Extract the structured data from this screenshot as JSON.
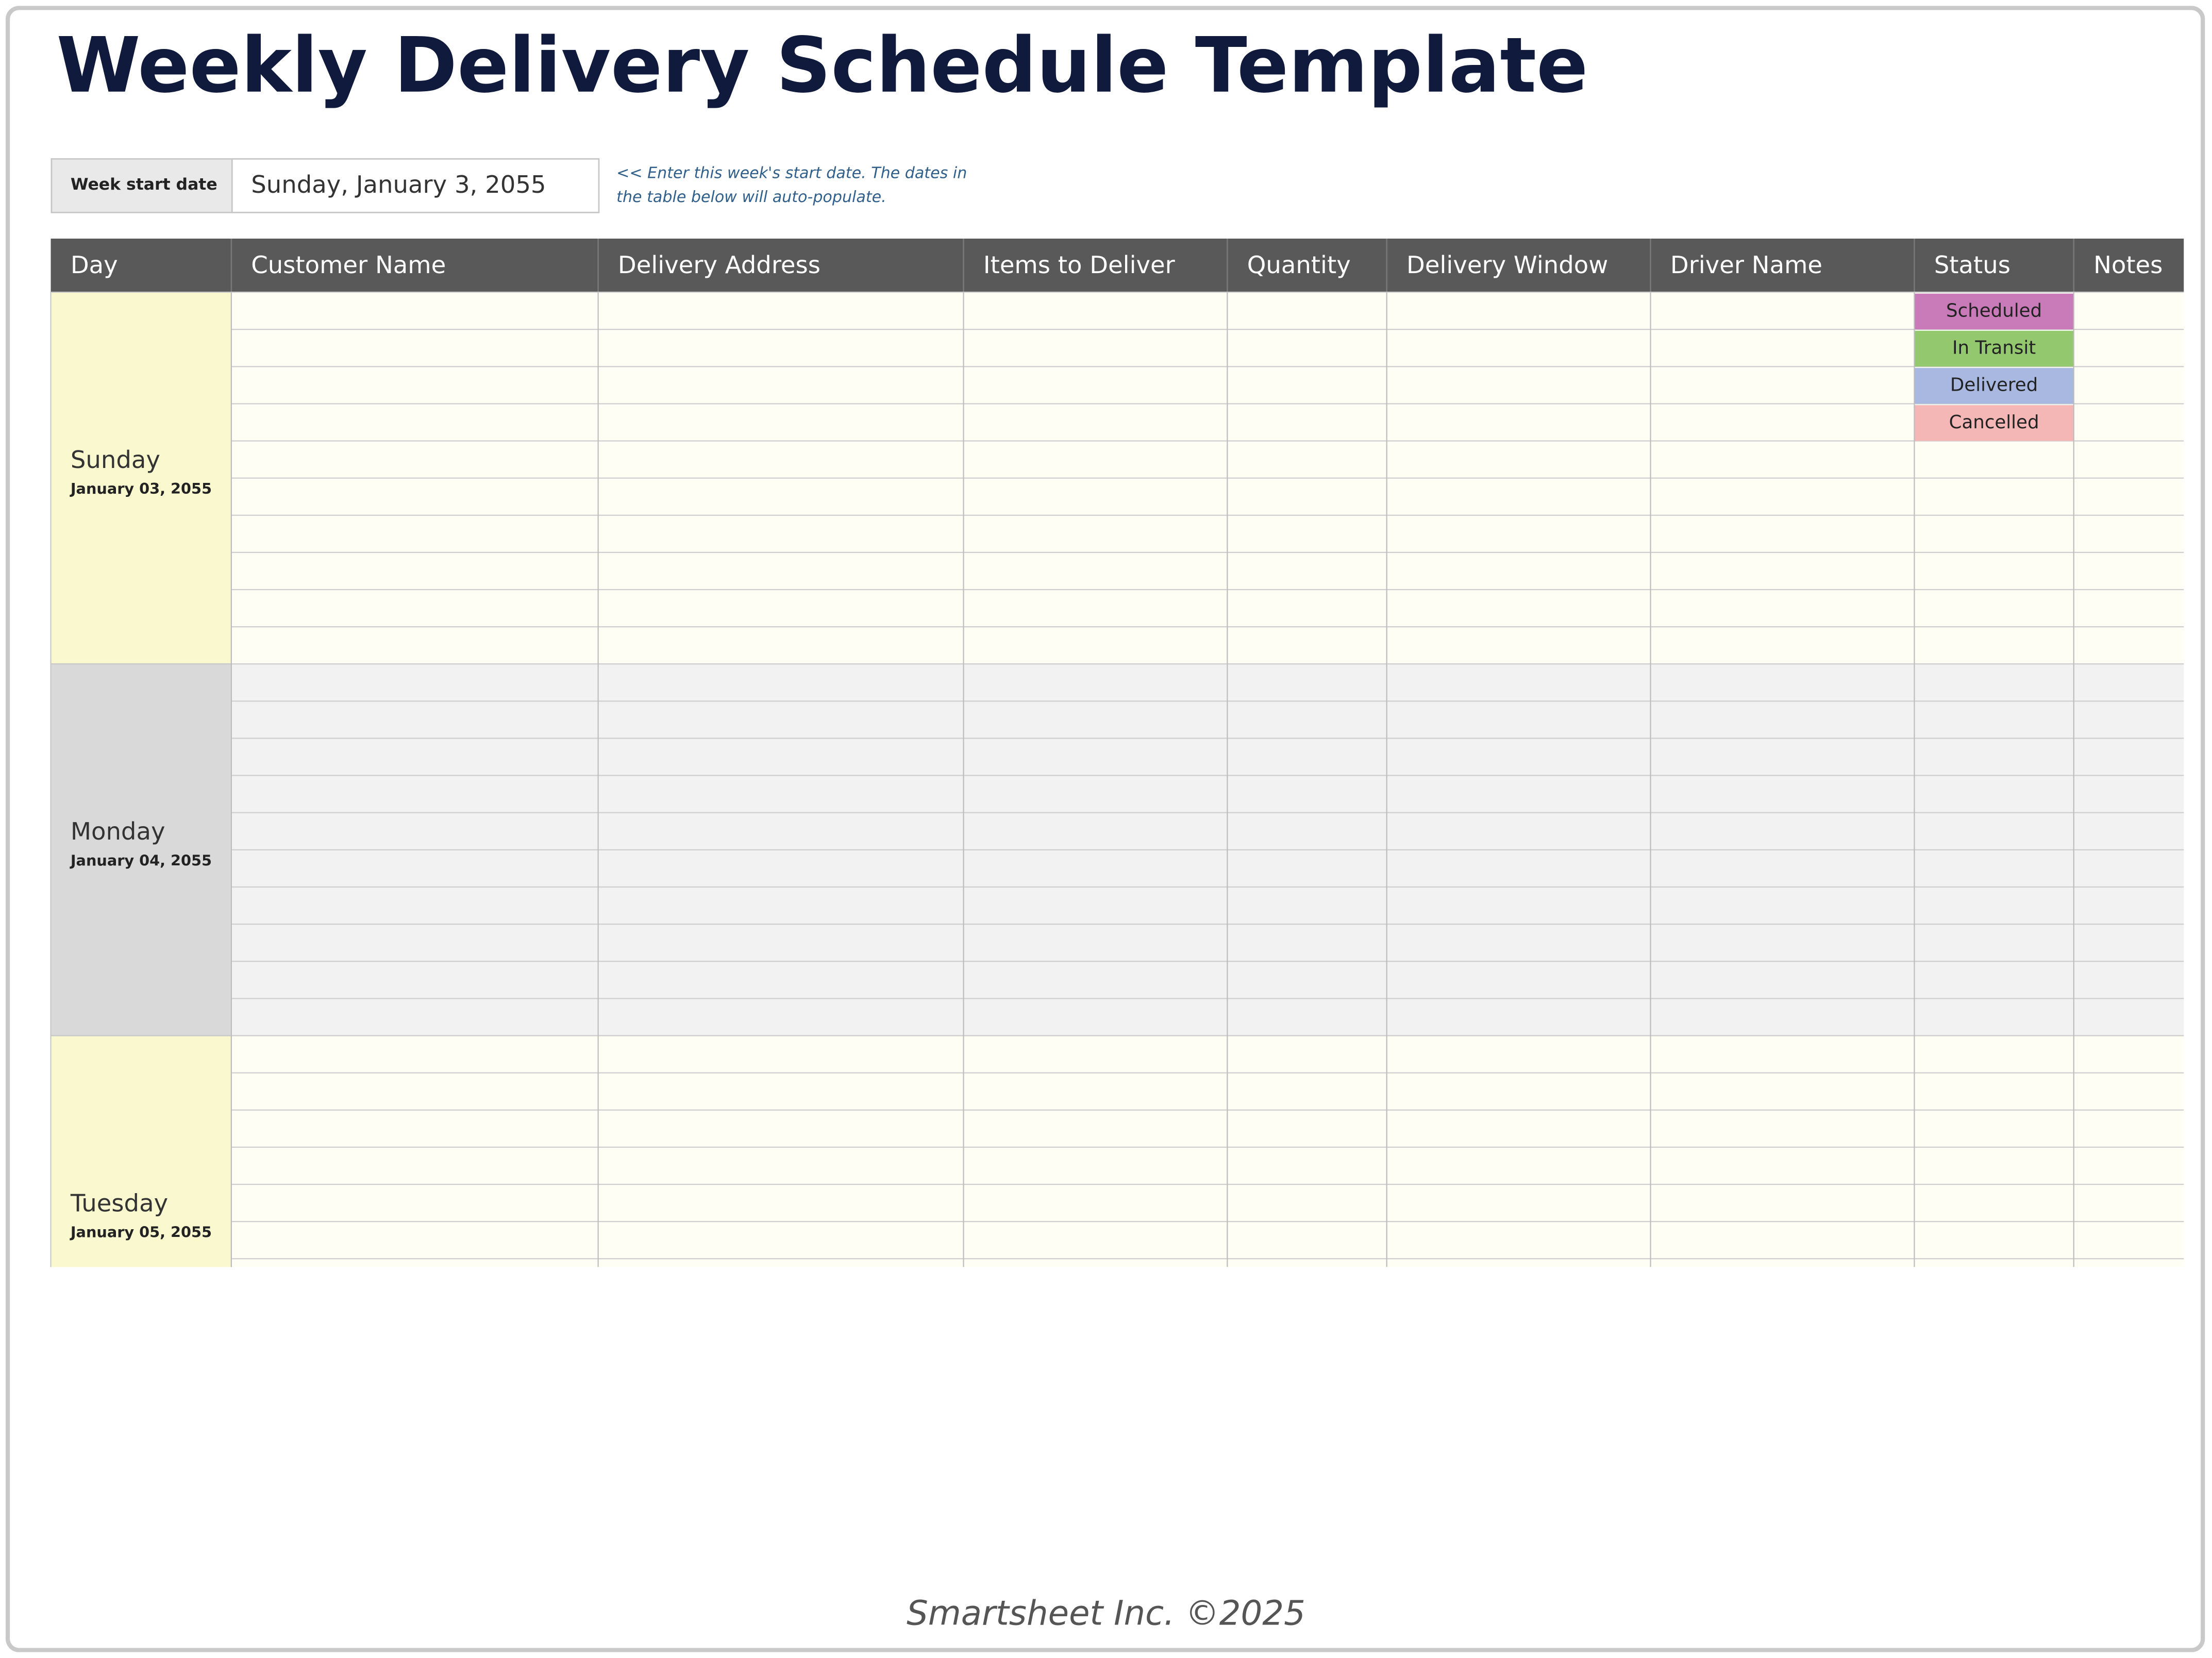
{
  "header": {
    "title": "Weekly Delivery Schedule Template"
  },
  "week_start": {
    "label": "Week start date",
    "value": "Sunday, January 3, 2055",
    "note": [
      "<< Enter this week's start date. The dates in",
      "the table below will auto-populate."
    ]
  },
  "table": {
    "columns": [
      "Day",
      "Customer Name",
      "Delivery Address",
      "Items to Deliver",
      "Quantity",
      "Delivery Window",
      "Driver Name",
      "Status",
      "Notes"
    ],
    "days": [
      {
        "name": "Sunday",
        "date": "January 03, 2055"
      },
      {
        "name": "Monday",
        "date": "January 04, 2055"
      },
      {
        "name": "Tuesday",
        "date": "January 05, 2055"
      }
    ],
    "statuses": [
      {
        "label": "Scheduled",
        "color": "#c87bb8"
      },
      {
        "label": "In Transit",
        "color": "#93c86f"
      },
      {
        "label": "Delivered",
        "color": "#a8b8e0"
      },
      {
        "label": "Cancelled",
        "color": "#f4b7b5"
      }
    ]
  },
  "footer": "Smartsheet Inc. ©2025"
}
